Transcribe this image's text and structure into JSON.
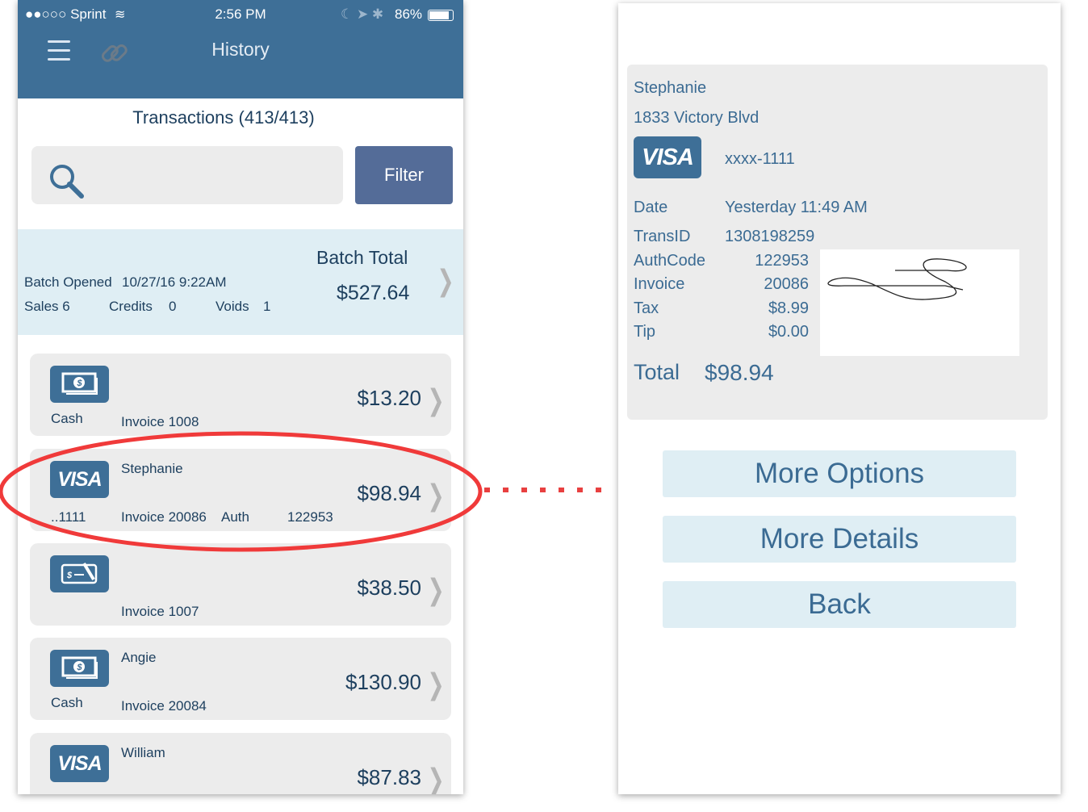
{
  "status_bar": {
    "carrier": "●●○○○ Sprint",
    "time": "2:56 PM",
    "battery": "86%"
  },
  "header": {
    "title": "History",
    "menu_icon": "hamburger-icon",
    "link_icon": "link-icon"
  },
  "transactions_title": "Transactions (413/413)",
  "search": {
    "placeholder": ""
  },
  "filter_label": "Filter",
  "batch": {
    "opened_label": "Batch Opened",
    "opened_value": "10/27/16 9:22AM",
    "sales": "Sales 6",
    "credits_label": "Credits",
    "credits": "0",
    "voids_label": "Voids",
    "voids": "1",
    "total_label": "Batch Total",
    "total": "$527.64"
  },
  "transactions": [
    {
      "type": "cash",
      "icon_label": "",
      "name": "",
      "sub": "Cash",
      "invoice": "Invoice 1008",
      "auth_label": "",
      "auth": "",
      "amount": "$13.20"
    },
    {
      "type": "visa",
      "icon_label": "VISA",
      "name": "Stephanie",
      "sub": "..1111",
      "invoice": "Invoice 20086",
      "auth_label": "Auth",
      "auth": "122953",
      "amount": "$98.94"
    },
    {
      "type": "check",
      "icon_label": "",
      "name": "",
      "sub": "",
      "invoice": "Invoice 1007",
      "auth_label": "",
      "auth": "",
      "amount": "$38.50"
    },
    {
      "type": "cash",
      "icon_label": "",
      "name": "Angie",
      "sub": "Cash",
      "invoice": "Invoice 20084",
      "auth_label": "",
      "auth": "",
      "amount": "$130.90"
    },
    {
      "type": "visa",
      "icon_label": "VISA",
      "name": "William",
      "sub": "",
      "invoice": "",
      "auth_label": "",
      "auth": "",
      "amount": "$87.83"
    }
  ],
  "detail": {
    "name": "Stephanie",
    "address": "1833 Victory Blvd",
    "card_brand": "VISA",
    "card_number": "xxxx-1111",
    "date_label": "Date",
    "date": "Yesterday 11:49 AM",
    "transid_label": "TransID",
    "transid": "1308198259",
    "auth_label": "AuthCode",
    "auth": "122953",
    "invoice_label": "Invoice",
    "invoice": "20086",
    "tax_label": "Tax",
    "tax": "$8.99",
    "tip_label": "Tip",
    "tip": "$0.00",
    "total_label": "Total",
    "total": "$98.94"
  },
  "buttons": {
    "more_options": "More Options",
    "more_details": "More Details",
    "back": "Back"
  },
  "colors": {
    "brand": "#3e6f97",
    "filter": "#546c98",
    "highlight": "#f03a3a"
  }
}
